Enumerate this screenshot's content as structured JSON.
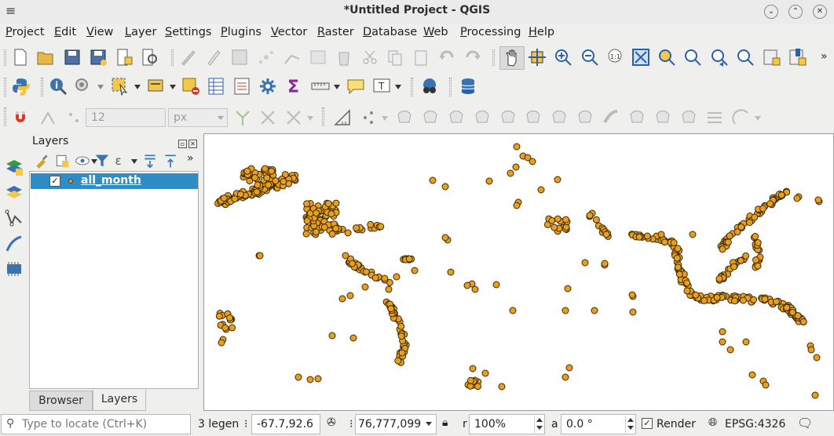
{
  "window": {
    "title": "*Untitled Project - QGIS"
  },
  "menu": [
    "Project",
    "Edit",
    "View",
    "Layer",
    "Settings",
    "Plugins",
    "Vector",
    "Raster",
    "Database",
    "Web",
    "Processing",
    "Help"
  ],
  "digitizing": {
    "snap_tolerance": "12",
    "snap_units": "px"
  },
  "layers_panel": {
    "title": "Layers",
    "layer_name": "all_month",
    "layer_checked": "✓"
  },
  "tabs": {
    "browser": "Browser",
    "layers": "Layers"
  },
  "status": {
    "locator_placeholder": "Type to locate (Ctrl+K)",
    "legend_text": "3 legen",
    "coordinate": "-67.7,92.6",
    "scale": "76,777,099",
    "magnifier": "100%",
    "rotation": "0.0 °",
    "render_label": "Render",
    "render_checked": "✓",
    "crs": "EPSG:4326"
  },
  "colors": {
    "point_fill": "#e99f1c",
    "selection": "#308cc6"
  }
}
